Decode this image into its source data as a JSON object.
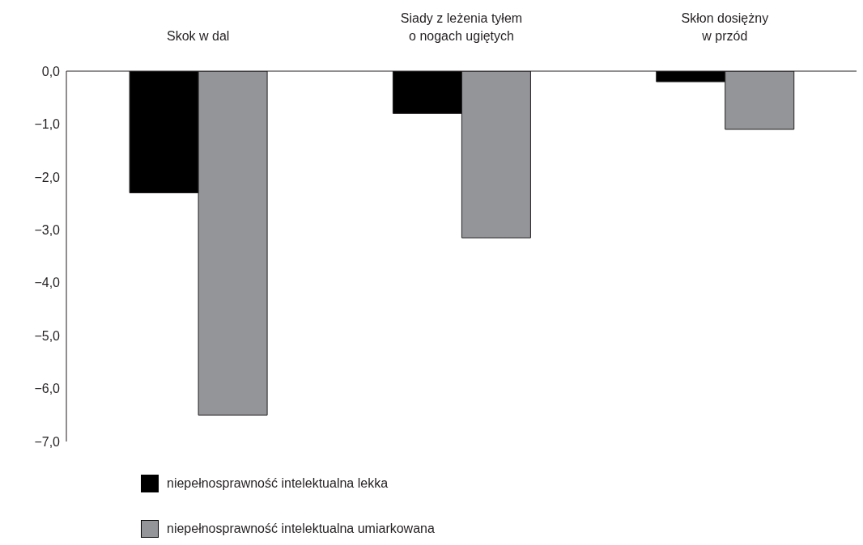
{
  "chart_data": {
    "type": "bar",
    "categories": [
      "Skok w dal",
      "Siady z leżenia tyłem\no nogach ugiętych",
      "Skłon dosiężny\nw przód"
    ],
    "series": [
      {
        "name": "niepełnosprawność intelektualna lekka",
        "color": "#000000",
        "values": [
          -2.3,
          -0.8,
          -0.2
        ]
      },
      {
        "name": "niepełnosprawność intelektualna umiarkowana",
        "color": "#939598",
        "values": [
          -6.5,
          -3.15,
          -1.1
        ]
      }
    ],
    "ylim": [
      -7,
      0
    ],
    "yticks": [
      {
        "value": 0,
        "label": "0,0"
      },
      {
        "value": -1,
        "label": "−1,0"
      },
      {
        "value": -2,
        "label": "−2,0"
      },
      {
        "value": -3,
        "label": "−3,0"
      },
      {
        "value": -4,
        "label": "−4,0"
      },
      {
        "value": -5,
        "label": "−5,0"
      },
      {
        "value": -6,
        "label": "−6,0"
      },
      {
        "value": -7,
        "label": "−7,0"
      }
    ],
    "legend": "bottom left"
  }
}
